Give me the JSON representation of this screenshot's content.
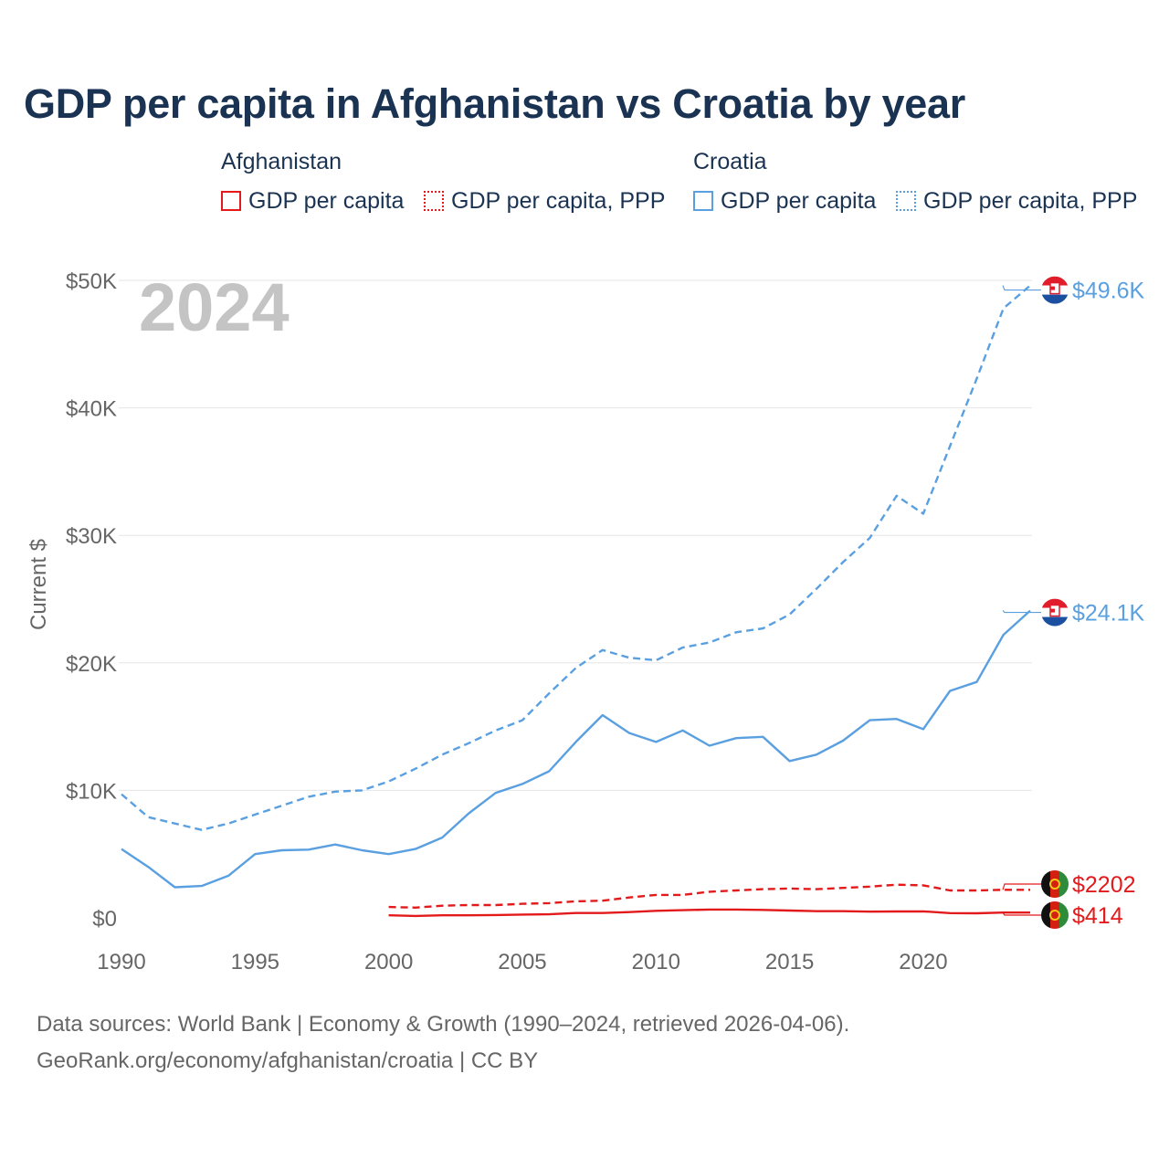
{
  "title": "GDP per capita in Afghanistan vs Croatia by year",
  "legend": {
    "groups": [
      {
        "name": "Afghanistan",
        "items": [
          "GDP per capita",
          "GDP per capita, PPP"
        ]
      },
      {
        "name": "Croatia",
        "items": [
          "GDP per capita",
          "GDP per capita, PPP"
        ]
      }
    ]
  },
  "footer": {
    "line1": "Data sources: World Bank | Economy & Growth (1990–2024, retrieved 2026-04-06).",
    "line2": "GeoRank.org/economy/afghanistan/croatia | CC BY"
  },
  "colors": {
    "afghanistan": "#e31a1c",
    "croatia": "#5aa0e0",
    "grid": "#e6e6e6",
    "axis_text": "#666666"
  },
  "chart_data": {
    "type": "line",
    "title": "GDP per capita in Afghanistan vs Croatia by year",
    "year_watermark": "2024",
    "ylabel": "Current $",
    "xlabel": "",
    "xlim": [
      1990,
      2024
    ],
    "ylim": [
      0,
      50000
    ],
    "x_ticks": [
      1990,
      1995,
      2000,
      2005,
      2010,
      2015,
      2020
    ],
    "y_ticks": [
      {
        "value": 0,
        "label": "$0"
      },
      {
        "value": 10000,
        "label": "$10K"
      },
      {
        "value": 20000,
        "label": "$20K"
      },
      {
        "value": 30000,
        "label": "$30K"
      },
      {
        "value": 40000,
        "label": "$40K"
      },
      {
        "value": 50000,
        "label": "$50K"
      }
    ],
    "series": [
      {
        "name": "Croatia GDP per capita, PPP",
        "country": "croatia",
        "style": "dashed",
        "end_label": "$49.6K",
        "points": [
          [
            1990,
            9700
          ],
          [
            1991,
            7900
          ],
          [
            1992,
            7400
          ],
          [
            1993,
            6900
          ],
          [
            1994,
            7400
          ],
          [
            1995,
            8100
          ],
          [
            1996,
            8800
          ],
          [
            1997,
            9500
          ],
          [
            1998,
            9900
          ],
          [
            1999,
            10000
          ],
          [
            2000,
            10700
          ],
          [
            2001,
            11700
          ],
          [
            2002,
            12800
          ],
          [
            2003,
            13700
          ],
          [
            2004,
            14700
          ],
          [
            2005,
            15500
          ],
          [
            2006,
            17600
          ],
          [
            2007,
            19600
          ],
          [
            2008,
            21000
          ],
          [
            2009,
            20400
          ],
          [
            2010,
            20200
          ],
          [
            2011,
            21200
          ],
          [
            2012,
            21600
          ],
          [
            2013,
            22400
          ],
          [
            2014,
            22700
          ],
          [
            2015,
            23800
          ],
          [
            2016,
            25800
          ],
          [
            2017,
            27900
          ],
          [
            2018,
            29800
          ],
          [
            2019,
            33100
          ],
          [
            2020,
            31700
          ],
          [
            2021,
            37000
          ],
          [
            2022,
            42300
          ],
          [
            2023,
            47800
          ],
          [
            2024,
            49600
          ]
        ]
      },
      {
        "name": "Croatia GDP per capita",
        "country": "croatia",
        "style": "solid",
        "end_label": "$24.1K",
        "points": [
          [
            1990,
            5400
          ],
          [
            1991,
            4000
          ],
          [
            1992,
            2400
          ],
          [
            1993,
            2500
          ],
          [
            1994,
            3300
          ],
          [
            1995,
            5000
          ],
          [
            1996,
            5300
          ],
          [
            1997,
            5350
          ],
          [
            1998,
            5750
          ],
          [
            1999,
            5300
          ],
          [
            2000,
            5000
          ],
          [
            2001,
            5400
          ],
          [
            2002,
            6300
          ],
          [
            2003,
            8200
          ],
          [
            2004,
            9800
          ],
          [
            2005,
            10500
          ],
          [
            2006,
            11500
          ],
          [
            2007,
            13800
          ],
          [
            2008,
            15900
          ],
          [
            2009,
            14500
          ],
          [
            2010,
            13800
          ],
          [
            2011,
            14700
          ],
          [
            2012,
            13500
          ],
          [
            2013,
            14100
          ],
          [
            2014,
            14200
          ],
          [
            2015,
            12300
          ],
          [
            2016,
            12800
          ],
          [
            2017,
            13900
          ],
          [
            2018,
            15500
          ],
          [
            2019,
            15600
          ],
          [
            2020,
            14800
          ],
          [
            2021,
            17800
          ],
          [
            2022,
            18500
          ],
          [
            2023,
            22200
          ],
          [
            2024,
            24100
          ]
        ]
      },
      {
        "name": "Afghanistan GDP per capita, PPP",
        "country": "afghanistan",
        "style": "dashed",
        "end_label": "$2202",
        "points": [
          [
            2000,
            850
          ],
          [
            2001,
            800
          ],
          [
            2002,
            950
          ],
          [
            2003,
            1000
          ],
          [
            2004,
            1000
          ],
          [
            2005,
            1100
          ],
          [
            2006,
            1150
          ],
          [
            2007,
            1300
          ],
          [
            2008,
            1350
          ],
          [
            2009,
            1600
          ],
          [
            2010,
            1800
          ],
          [
            2011,
            1800
          ],
          [
            2012,
            2050
          ],
          [
            2013,
            2150
          ],
          [
            2014,
            2250
          ],
          [
            2015,
            2300
          ],
          [
            2016,
            2250
          ],
          [
            2017,
            2350
          ],
          [
            2018,
            2450
          ],
          [
            2019,
            2600
          ],
          [
            2020,
            2550
          ],
          [
            2021,
            2150
          ],
          [
            2022,
            2150
          ],
          [
            2023,
            2200
          ],
          [
            2024,
            2202
          ]
        ]
      },
      {
        "name": "Afghanistan GDP per capita",
        "country": "afghanistan",
        "style": "solid",
        "end_label": "$414",
        "points": [
          [
            2000,
            200
          ],
          [
            2001,
            150
          ],
          [
            2002,
            200
          ],
          [
            2003,
            200
          ],
          [
            2004,
            220
          ],
          [
            2005,
            260
          ],
          [
            2006,
            280
          ],
          [
            2007,
            380
          ],
          [
            2008,
            380
          ],
          [
            2009,
            450
          ],
          [
            2010,
            550
          ],
          [
            2011,
            600
          ],
          [
            2012,
            650
          ],
          [
            2013,
            650
          ],
          [
            2014,
            620
          ],
          [
            2015,
            570
          ],
          [
            2016,
            520
          ],
          [
            2017,
            520
          ],
          [
            2018,
            490
          ],
          [
            2019,
            500
          ],
          [
            2020,
            510
          ],
          [
            2021,
            370
          ],
          [
            2022,
            360
          ],
          [
            2023,
            414
          ],
          [
            2024,
            414
          ]
        ]
      }
    ]
  }
}
